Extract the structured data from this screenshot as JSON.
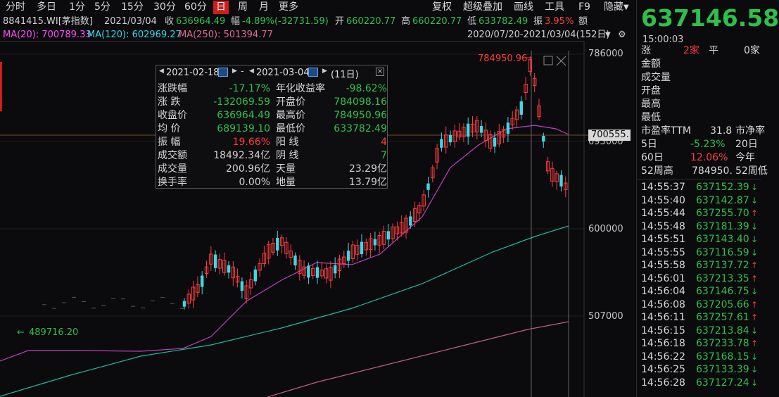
{
  "toolbar": {
    "tabs": [
      "分时",
      "多日",
      "1分",
      "5分",
      "15分",
      "30分",
      "60分",
      "日",
      "周",
      "月",
      "更多"
    ],
    "active_tab": "日",
    "right": [
      "复权",
      "超级叠加",
      "画线",
      "工具",
      "F9",
      "隐藏"
    ]
  },
  "quote": {
    "code": "8841415.WI[茅指数]",
    "date": "2021/03/04",
    "close_label": "收",
    "close": "636964.49",
    "chg_label": "幅",
    "chg": "-4.89%(-32731.59)",
    "open_label": "开",
    "open": "660220.77",
    "high_label": "高",
    "high": "660220.77",
    "low_label": "低",
    "low": "633782.49",
    "amp_label": "振",
    "amp": "3.95%",
    "amount_label": "额"
  },
  "ma": {
    "ma20": "MA(20): 700789.33",
    "ma120": "MA(120): 602969.27",
    "ma250": "MA(250): 501394.77",
    "range": "2020/07/20-2021/03/04(152日)"
  },
  "axis": {
    "labels": [
      "786000",
      "693000",
      "600000",
      "507000"
    ],
    "current": "700555.",
    "high_mark": "784950.96",
    "low_mark": "489716.20"
  },
  "tooltip": {
    "from": "2021-02-18",
    "to": "2021-03-04",
    "days": "(11日)",
    "rows": [
      {
        "k1": "涨跌幅",
        "v1": "-17.17%",
        "c1": "g",
        "k2": "年化收益率",
        "v2": "-98.62%",
        "c2": "g"
      },
      {
        "k1": "涨  跌",
        "v1": "-132069.59",
        "c1": "g",
        "k2": "开盘价",
        "v2": "784098.16",
        "c2": "g"
      },
      {
        "k1": "收盘价",
        "v1": "636964.49",
        "c1": "g",
        "k2": "最高价",
        "v2": "784950.96",
        "c2": "g"
      },
      {
        "k1": "均  价",
        "v1": "689139.10",
        "c1": "g",
        "k2": "最低价",
        "v2": "633782.49",
        "c2": "g"
      },
      {
        "k1": "振  幅",
        "v1": "19.66%",
        "c1": "r",
        "k2": "阳  线",
        "v2": "4",
        "c2": "r"
      },
      {
        "k1": "成交额",
        "v1": "18492.34亿",
        "c1": "w",
        "k2": "阴  线",
        "v2": "7",
        "c2": "g"
      },
      {
        "k1": "成交量",
        "v1": "200.96亿",
        "c1": "w",
        "k2": "天量",
        "v2": "23.29亿",
        "c2": "w"
      },
      {
        "k1": "换手率",
        "v1": "0.00%",
        "c1": "w",
        "k2": "地量",
        "v2": "13.79亿",
        "c2": "w"
      }
    ]
  },
  "side": {
    "price": "637146.58",
    "time": "15:00:03",
    "stats": [
      {
        "a": "涨",
        "b": "2家",
        "c": "平",
        "d": "0家"
      },
      {
        "a": "金额"
      },
      {
        "a": "成交量"
      },
      {
        "a": "开盘"
      },
      {
        "a": "最高"
      },
      {
        "a": "最低"
      }
    ],
    "pe_label": "市盈率TTM",
    "pe": "31.8",
    "pb_label": "市净率",
    "d5_label": "5日",
    "d5": "-5.23%",
    "d20_label": "20日",
    "d60_label": "60日",
    "d60": "12.06%",
    "ytd_label": "今年",
    "w52_label": "52周高",
    "w52": "784950.",
    "w52b_label": "52周低",
    "ticks": [
      {
        "t": "14:55:37",
        "p": "637152.39",
        "dir": "down"
      },
      {
        "t": "14:55:40",
        "p": "637142.87",
        "dir": "down"
      },
      {
        "t": "14:55:44",
        "p": "637255.70",
        "dir": "up"
      },
      {
        "t": "14:55:48",
        "p": "637181.39",
        "dir": "down"
      },
      {
        "t": "14:55:51",
        "p": "637143.40",
        "dir": "down"
      },
      {
        "t": "14:55:55",
        "p": "637116.59",
        "dir": "down"
      },
      {
        "t": "14:55:58",
        "p": "637137.72",
        "dir": "up"
      },
      {
        "t": "14:56:01",
        "p": "637213.35",
        "dir": "up"
      },
      {
        "t": "14:56:04",
        "p": "637146.75",
        "dir": "down"
      },
      {
        "t": "14:56:08",
        "p": "637205.66",
        "dir": "up"
      },
      {
        "t": "14:56:11",
        "p": "637257.61",
        "dir": "up"
      },
      {
        "t": "14:56:15",
        "p": "637213.84",
        "dir": "down"
      },
      {
        "t": "14:56:18",
        "p": "637233.78",
        "dir": "up"
      },
      {
        "t": "14:56:22",
        "p": "637168.15",
        "dir": "down"
      },
      {
        "t": "14:56:25",
        "p": "637133.39",
        "dir": "down"
      },
      {
        "t": "14:56:28",
        "p": "637127.24",
        "dir": "down"
      }
    ]
  },
  "colors": {
    "up": "#ff3b3b",
    "down": "#2ec04a",
    "candle_down": "#3fd7e4",
    "ma20": "#c040c0",
    "ma120": "#20b8a0",
    "ma250": "#c06080",
    "active_tab": "#d01c1c"
  }
}
